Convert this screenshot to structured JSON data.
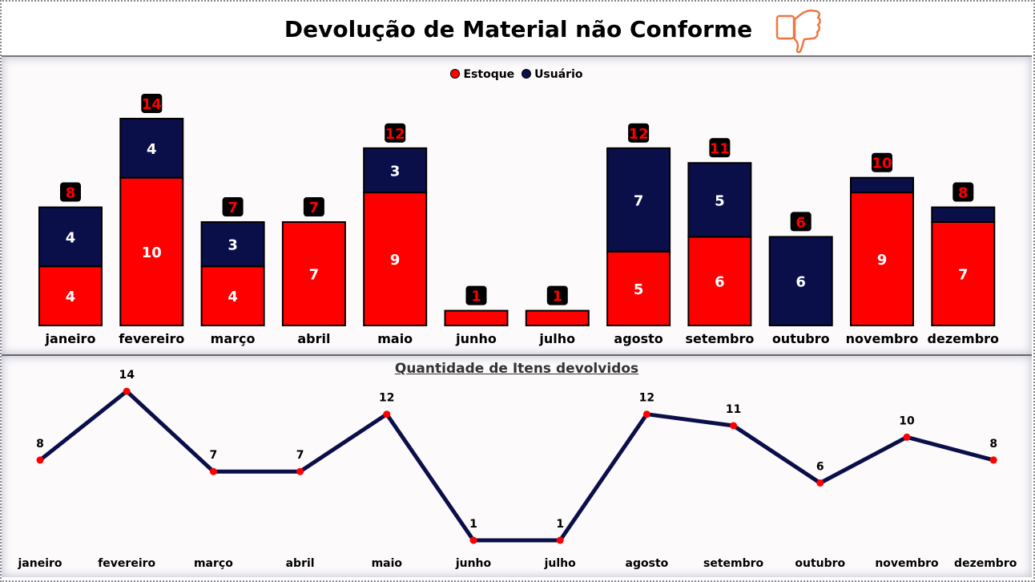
{
  "header": {
    "title": "Devolução de Material não Conforme",
    "icon": "thumbs-down-icon"
  },
  "chart_data": [
    {
      "type": "bar",
      "stacked": true,
      "categories": [
        "janeiro",
        "fevereiro",
        "março",
        "abril",
        "maio",
        "junho",
        "julho",
        "agosto",
        "setembro",
        "outubro",
        "novembro",
        "dezembro"
      ],
      "series": [
        {
          "name": "Estoque",
          "color": "#ff0000",
          "values": [
            4,
            10,
            4,
            7,
            9,
            1,
            1,
            5,
            6,
            0,
            9,
            7
          ]
        },
        {
          "name": "Usuário",
          "color": "#0a0f4a",
          "values": [
            4,
            4,
            3,
            0,
            3,
            0,
            0,
            7,
            5,
            6,
            1,
            1
          ]
        }
      ],
      "totals": [
        8,
        14,
        7,
        7,
        12,
        1,
        1,
        12,
        11,
        6,
        10,
        8
      ],
      "legend": "top",
      "grid": false
    },
    {
      "type": "line",
      "title": "Quantidade de Itens devolvidos",
      "categories": [
        "janeiro",
        "fevereiro",
        "março",
        "abril",
        "maio",
        "junho",
        "julho",
        "agosto",
        "setembro",
        "outubro",
        "novembro",
        "dezembro"
      ],
      "values": [
        8,
        14,
        7,
        7,
        12,
        1,
        1,
        12,
        11,
        6,
        10,
        8
      ],
      "line_color": "#0a0f4a",
      "marker_color": "#ff0000",
      "grid": false
    }
  ]
}
